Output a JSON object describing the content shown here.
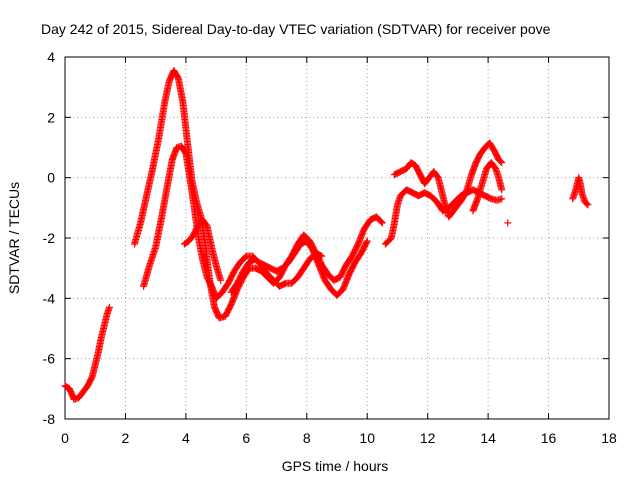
{
  "chart_data": {
    "type": "scatter",
    "title": "Day 242 of 2015, Sidereal Day-to-day VTEC variation (SDTVAR) for receiver pove",
    "xlabel": "GPS time / hours",
    "ylabel": "SDTVAR / TECUs",
    "xlim": [
      0,
      18
    ],
    "ylim": [
      -8,
      4
    ],
    "xticks": [
      0,
      2,
      4,
      6,
      8,
      10,
      12,
      14,
      16,
      18
    ],
    "yticks": [
      -8,
      -6,
      -4,
      -2,
      0,
      2,
      4
    ],
    "grid": true,
    "marker": "+",
    "color": "#ff0000",
    "series": [
      {
        "name": "SDTVAR",
        "segments": [
          [
            [
              0.0,
              -6.9
            ],
            [
              0.15,
              -7.0
            ],
            [
              0.3,
              -7.35
            ],
            [
              0.45,
              -7.3
            ],
            [
              0.6,
              -7.1
            ],
            [
              0.75,
              -6.9
            ],
            [
              0.9,
              -6.6
            ],
            [
              1.0,
              -6.2
            ],
            [
              1.1,
              -5.8
            ],
            [
              1.2,
              -5.3
            ],
            [
              1.3,
              -4.9
            ],
            [
              1.4,
              -4.5
            ],
            [
              1.47,
              -4.3
            ]
          ],
          [
            [
              2.3,
              -2.2
            ],
            [
              2.5,
              -1.5
            ],
            [
              2.7,
              -0.6
            ],
            [
              2.9,
              0.3
            ],
            [
              3.1,
              1.3
            ],
            [
              3.3,
              2.5
            ],
            [
              3.45,
              3.2
            ],
            [
              3.6,
              3.55
            ],
            [
              3.75,
              3.3
            ],
            [
              3.9,
              2.5
            ],
            [
              4.05,
              1.2
            ],
            [
              4.2,
              -0.1
            ],
            [
              4.35,
              -0.8
            ],
            [
              4.5,
              -1.3
            ],
            [
              4.65,
              -2.3
            ],
            [
              4.8,
              -3.5
            ],
            [
              4.95,
              -4.3
            ],
            [
              5.1,
              -4.65
            ],
            [
              5.3,
              -4.6
            ],
            [
              5.5,
              -4.2
            ],
            [
              5.7,
              -3.7
            ],
            [
              5.9,
              -3.3
            ],
            [
              6.1,
              -3.0
            ],
            [
              6.3,
              -3.0
            ],
            [
              6.5,
              -3.1
            ],
            [
              6.7,
              -3.3
            ],
            [
              6.9,
              -3.5
            ],
            [
              7.1,
              -3.3
            ],
            [
              7.3,
              -2.9
            ],
            [
              7.5,
              -2.6
            ],
            [
              7.7,
              -2.2
            ],
            [
              7.9,
              -1.9
            ],
            [
              8.1,
              -2.1
            ],
            [
              8.3,
              -2.5
            ],
            [
              8.5,
              -2.9
            ],
            [
              8.7,
              -3.2
            ],
            [
              8.9,
              -3.4
            ],
            [
              9.1,
              -3.3
            ],
            [
              9.3,
              -2.9
            ],
            [
              9.5,
              -2.6
            ],
            [
              9.7,
              -2.2
            ],
            [
              9.9,
              -1.7
            ],
            [
              10.1,
              -1.4
            ],
            [
              10.3,
              -1.3
            ],
            [
              10.5,
              -1.5
            ]
          ],
          [
            [
              2.6,
              -3.6
            ],
            [
              2.8,
              -2.9
            ],
            [
              3.0,
              -2.3
            ],
            [
              3.2,
              -1.3
            ],
            [
              3.4,
              -0.2
            ],
            [
              3.55,
              0.6
            ],
            [
              3.7,
              1.0
            ],
            [
              3.85,
              1.05
            ],
            [
              4.0,
              0.8
            ],
            [
              4.1,
              0.2
            ],
            [
              4.25,
              -0.8
            ],
            [
              4.4,
              -1.9
            ],
            [
              4.55,
              -2.7
            ],
            [
              4.7,
              -3.3
            ],
            [
              4.85,
              -3.6
            ],
            [
              5.0,
              -4.0
            ],
            [
              5.2,
              -3.8
            ],
            [
              5.4,
              -3.5
            ],
            [
              5.6,
              -3.1
            ],
            [
              5.8,
              -2.8
            ],
            [
              6.0,
              -2.6
            ],
            [
              6.2,
              -2.6
            ],
            [
              6.4,
              -2.8
            ],
            [
              6.6,
              -2.9
            ],
            [
              6.8,
              -3.0
            ],
            [
              7.0,
              -3.1
            ],
            [
              7.2,
              -3.0
            ],
            [
              7.4,
              -2.8
            ],
            [
              7.6,
              -2.5
            ],
            [
              7.8,
              -2.2
            ],
            [
              8.0,
              -2.1
            ],
            [
              8.2,
              -2.4
            ],
            [
              8.4,
              -2.9
            ],
            [
              8.6,
              -3.4
            ],
            [
              8.8,
              -3.7
            ],
            [
              9.0,
              -3.9
            ],
            [
              9.2,
              -3.7
            ],
            [
              9.4,
              -3.2
            ],
            [
              9.6,
              -2.8
            ],
            [
              9.8,
              -2.5
            ],
            [
              10.0,
              -2.1
            ]
          ],
          [
            [
              3.95,
              -2.2
            ],
            [
              4.1,
              -2.1
            ],
            [
              4.25,
              -1.9
            ],
            [
              4.4,
              -1.6
            ],
            [
              4.55,
              -1.4
            ],
            [
              4.7,
              -1.6
            ],
            [
              4.85,
              -2.3
            ],
            [
              5.0,
              -2.9
            ],
            [
              5.15,
              -3.4
            ]
          ],
          [
            [
              5.5,
              -3.8
            ],
            [
              5.7,
              -3.5
            ],
            [
              5.9,
              -3.1
            ],
            [
              6.1,
              -2.8
            ],
            [
              6.3,
              -2.7
            ],
            [
              6.5,
              -2.9
            ],
            [
              6.7,
              -3.2
            ],
            [
              6.9,
              -3.4
            ],
            [
              7.1,
              -3.6
            ],
            [
              7.3,
              -3.5
            ],
            [
              7.5,
              -3.5
            ],
            [
              7.7,
              -3.3
            ],
            [
              7.9,
              -3.0
            ],
            [
              8.1,
              -2.7
            ],
            [
              8.3,
              -2.5
            ],
            [
              8.5,
              -2.6
            ]
          ],
          [
            [
              10.6,
              -2.2
            ],
            [
              10.8,
              -2.0
            ],
            [
              10.9,
              -1.5
            ],
            [
              11.0,
              -0.9
            ],
            [
              11.1,
              -0.6
            ],
            [
              11.3,
              -0.4
            ],
            [
              11.5,
              -0.5
            ],
            [
              11.7,
              -0.6
            ],
            [
              11.9,
              -0.5
            ],
            [
              12.1,
              -0.6
            ],
            [
              12.3,
              -0.8
            ],
            [
              12.5,
              -1.1
            ],
            [
              12.7,
              -1.0
            ],
            [
              12.9,
              -0.8
            ],
            [
              13.1,
              -0.6
            ],
            [
              13.3,
              -0.5
            ],
            [
              13.5,
              -0.4
            ],
            [
              13.7,
              -0.5
            ],
            [
              13.9,
              -0.6
            ],
            [
              14.1,
              -0.7
            ],
            [
              14.3,
              -0.75
            ],
            [
              14.45,
              -0.7
            ]
          ],
          [
            [
              10.9,
              0.1
            ],
            [
              11.1,
              0.2
            ],
            [
              11.3,
              0.3
            ],
            [
              11.45,
              0.5
            ],
            [
              11.6,
              0.4
            ],
            [
              11.75,
              0.1
            ],
            [
              11.9,
              -0.2
            ],
            [
              12.05,
              0.0
            ],
            [
              12.2,
              0.2
            ],
            [
              12.35,
              0.0
            ],
            [
              12.5,
              -0.6
            ],
            [
              12.6,
              -1.0
            ],
            [
              12.7,
              -1.3
            ],
            [
              12.85,
              -1.1
            ],
            [
              13.0,
              -0.9
            ],
            [
              13.15,
              -0.7
            ],
            [
              13.3,
              -0.4
            ],
            [
              13.45,
              0.1
            ],
            [
              13.6,
              0.5
            ],
            [
              13.75,
              0.8
            ],
            [
              13.9,
              1.0
            ],
            [
              14.05,
              1.15
            ],
            [
              14.2,
              0.9
            ],
            [
              14.35,
              0.6
            ],
            [
              14.45,
              0.5
            ]
          ],
          [
            [
              13.5,
              -1.1
            ],
            [
              13.65,
              -0.7
            ],
            [
              13.8,
              -0.2
            ],
            [
              13.95,
              0.3
            ],
            [
              14.1,
              0.5
            ],
            [
              14.25,
              0.3
            ],
            [
              14.35,
              0.0
            ],
            [
              14.45,
              -0.4
            ]
          ],
          [
            [
              14.65,
              -1.5
            ]
          ],
          [
            [
              16.8,
              -0.7
            ],
            [
              16.9,
              -0.4
            ],
            [
              17.0,
              0.0
            ],
            [
              17.05,
              -0.2
            ],
            [
              17.1,
              -0.5
            ],
            [
              17.2,
              -0.8
            ],
            [
              17.3,
              -0.9
            ]
          ]
        ]
      }
    ]
  }
}
